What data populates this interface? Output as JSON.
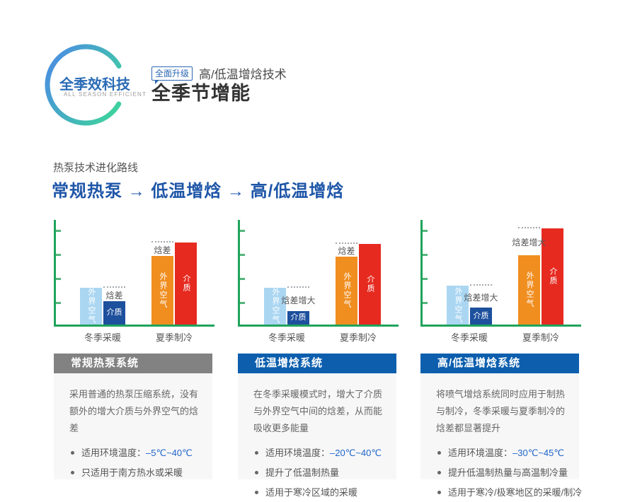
{
  "logo": {
    "title": "全季效科技",
    "subtitle": "ALL SEASON EFFICIENT",
    "arc_gradient": [
      "#4a93dc",
      "#3ed0a0"
    ]
  },
  "header": {
    "badge": "全面升级",
    "tagline": "高/低温增焓技术",
    "title": "全季节增能"
  },
  "evolution": {
    "label": "热泵技术进化路线",
    "path": "常规热泵 → 低温增焓 → 高/低温增焓"
  },
  "chart_style": {
    "axis_color": "#1fa35c",
    "tick_count": 4,
    "gridlines": false,
    "legend": "none",
    "value_unit": "relative enthalpy height (no numeric axis labels shown)"
  },
  "chart_data": [
    {
      "type": "bar",
      "title": "常规热泵系统",
      "categories": [
        "冬季采暖",
        "夏季制冷"
      ],
      "groups": [
        {
          "label": "冬季采暖",
          "annotation": "焓差",
          "bars": [
            {
              "id": "outside-air",
              "name": "外界空气",
              "value": 52,
              "color": "#aad6f2"
            },
            {
              "id": "medium",
              "name": "介质",
              "value": 33,
              "color": "#1d509d"
            }
          ]
        },
        {
          "label": "夏季制冷",
          "annotation": "焓差",
          "bars": [
            {
              "id": "outside-air",
              "name": "外界空气",
              "value": 97,
              "color": "#f08e20"
            },
            {
              "id": "medium",
              "name": "介质",
              "value": 116,
              "color": "#e62a20"
            }
          ]
        }
      ]
    },
    {
      "type": "bar",
      "title": "低温增焓系统",
      "categories": [
        "冬季采暖",
        "夏季制冷"
      ],
      "groups": [
        {
          "label": "冬季采暖",
          "annotation": "焓差增大",
          "bars": [
            {
              "id": "outside-air",
              "name": "外界空气",
              "value": 52,
              "color": "#aad6f2"
            },
            {
              "id": "medium",
              "name": "介质",
              "value": 19,
              "color": "#1d509d"
            }
          ]
        },
        {
          "label": "夏季制冷",
          "annotation": "焓差",
          "bars": [
            {
              "id": "outside-air",
              "name": "外界空气",
              "value": 96,
              "color": "#f08e20"
            },
            {
              "id": "medium",
              "name": "介质",
              "value": 114,
              "color": "#e62a20"
            }
          ]
        }
      ]
    },
    {
      "type": "bar",
      "title": "高/低温增焓系统",
      "categories": [
        "冬季采暖",
        "夏季制冷"
      ],
      "groups": [
        {
          "label": "冬季采暖",
          "annotation": "焓差增大",
          "bars": [
            {
              "id": "outside-air",
              "name": "外界空气",
              "value": 55,
              "color": "#aad6f2"
            },
            {
              "id": "medium",
              "name": "介质",
              "value": 24,
              "color": "#1d509d"
            }
          ]
        },
        {
          "label": "夏季制冷",
          "annotation": "焓差增大",
          "bars": [
            {
              "id": "outside-air",
              "name": "外界空气",
              "value": 98,
              "color": "#f08e20"
            },
            {
              "id": "medium",
              "name": "介质",
              "value": 136,
              "color": "#e62a20"
            }
          ]
        }
      ]
    }
  ],
  "cards": [
    {
      "title": "常规热泵系统",
      "header_color": "#828282",
      "description": "采用普通的热泵压缩系统，没有额外的增大介质与外界空气的焓差",
      "bullets": [
        {
          "text": "适用环境温度：",
          "highlight": "–5℃~40℃"
        },
        {
          "text": "只适用于南方热水或采暖",
          "highlight": ""
        }
      ]
    },
    {
      "title": "低温增焓系统",
      "header_color": "#0d5fae",
      "description": "在冬季采暖模式时，增大了介质与外界空气中间的焓差，从而能吸收更多能量",
      "bullets": [
        {
          "text": "适用环境温度：",
          "highlight": "–20℃~40℃"
        },
        {
          "text": "提升了低温制热量",
          "highlight": ""
        },
        {
          "text": "适用于寒冷区域的采暖",
          "highlight": ""
        }
      ]
    },
    {
      "title": "高/低温增焓系统",
      "header_color": "#0d5fae",
      "description": "将喷气增焓系统同时应用于制热与制冷，冬季采暖与夏季制冷的焓差都显著提升",
      "bullets": [
        {
          "text": "适用环境温度：",
          "highlight": "–30℃~45℃"
        },
        {
          "text": "提升低温制热量与高温制冷量",
          "highlight": ""
        },
        {
          "text": "适用于寒冷/极寒地区的采暖/制冷",
          "highlight": ""
        }
      ]
    }
  ]
}
